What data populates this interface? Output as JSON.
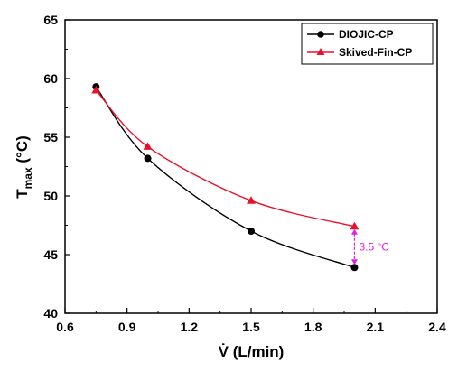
{
  "chart_data": {
    "type": "line",
    "title": "",
    "xlabel_main": "V̇",
    "xlabel_unit": " (L/min)",
    "ylabel_main": "T",
    "ylabel_sub": "max",
    "ylabel_unit": " (°C)",
    "xlim": [
      0.6,
      2.4
    ],
    "ylim": [
      40,
      65
    ],
    "x_ticks": [
      0.6,
      0.9,
      1.2,
      1.5,
      1.8,
      2.1,
      2.4
    ],
    "y_ticks": [
      40,
      45,
      50,
      55,
      60,
      65
    ],
    "x_tick_labels": [
      "0.6",
      "0.9",
      "1.2",
      "1.5",
      "1.8",
      "2.1",
      "2.4"
    ],
    "y_tick_labels": [
      "40",
      "45",
      "50",
      "55",
      "60",
      "65"
    ],
    "grid": false,
    "legend_position": "top-right",
    "series": [
      {
        "name": "DIOJIC-CP",
        "color": "#000000",
        "marker": "circle",
        "x": [
          0.75,
          1.0,
          1.5,
          2.0
        ],
        "y": [
          59.3,
          53.2,
          47.0,
          43.9
        ]
      },
      {
        "name": "Skived-Fin-CP",
        "color": "#e8102a",
        "marker": "triangle",
        "x": [
          0.75,
          1.0,
          1.5,
          2.0
        ],
        "y": [
          59.0,
          54.2,
          49.6,
          47.4
        ]
      }
    ],
    "annotation": {
      "text": "3.5 °C",
      "color": "#e020e0",
      "x": 2.0,
      "y_from": 47.4,
      "y_to": 43.9
    }
  }
}
